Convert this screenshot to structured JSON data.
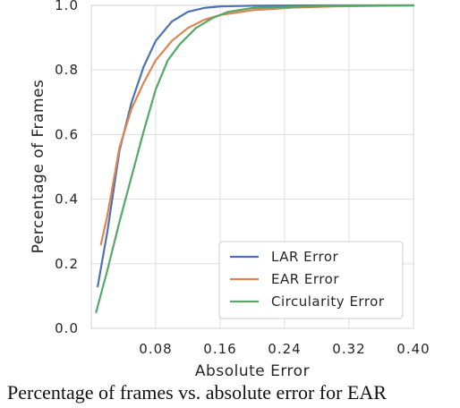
{
  "caption": "Percentage of frames vs. absolute error for EAR",
  "chart_data": {
    "type": "line",
    "title": "",
    "xlabel": "Absolute Error",
    "ylabel": "Percentage of Frames",
    "xlim": [
      0,
      0.4
    ],
    "ylim": [
      0,
      1.0
    ],
    "xticks": [
      "0.08",
      "0.16",
      "0.24",
      "0.32",
      "0.40"
    ],
    "yticks": [
      "0.0",
      "0.2",
      "0.4",
      "0.6",
      "0.8",
      "1.0"
    ],
    "grid": true,
    "legend_position": "lower-right",
    "series": [
      {
        "name": "LAR Error",
        "color": "#4c72b0",
        "x": [
          0.008,
          0.02,
          0.035,
          0.05,
          0.065,
          0.08,
          0.1,
          0.12,
          0.14,
          0.16,
          0.2,
          0.3,
          0.4
        ],
        "y": [
          0.13,
          0.3,
          0.55,
          0.7,
          0.81,
          0.89,
          0.95,
          0.98,
          0.992,
          0.997,
          0.999,
          1.0,
          1.0
        ]
      },
      {
        "name": "EAR Error",
        "color": "#dd8452",
        "x": [
          0.012,
          0.02,
          0.035,
          0.05,
          0.065,
          0.08,
          0.1,
          0.12,
          0.14,
          0.16,
          0.2,
          0.25,
          0.3,
          0.4
        ],
        "y": [
          0.26,
          0.35,
          0.56,
          0.68,
          0.76,
          0.83,
          0.89,
          0.93,
          0.955,
          0.97,
          0.985,
          0.993,
          0.997,
          1.0
        ]
      },
      {
        "name": "Circularity Error",
        "color": "#55a868",
        "x": [
          0.006,
          0.02,
          0.035,
          0.05,
          0.065,
          0.08,
          0.095,
          0.11,
          0.13,
          0.15,
          0.17,
          0.2,
          0.3,
          0.4
        ],
        "y": [
          0.05,
          0.18,
          0.33,
          0.47,
          0.61,
          0.74,
          0.83,
          0.88,
          0.93,
          0.96,
          0.98,
          0.992,
          0.999,
          1.0
        ]
      }
    ]
  }
}
